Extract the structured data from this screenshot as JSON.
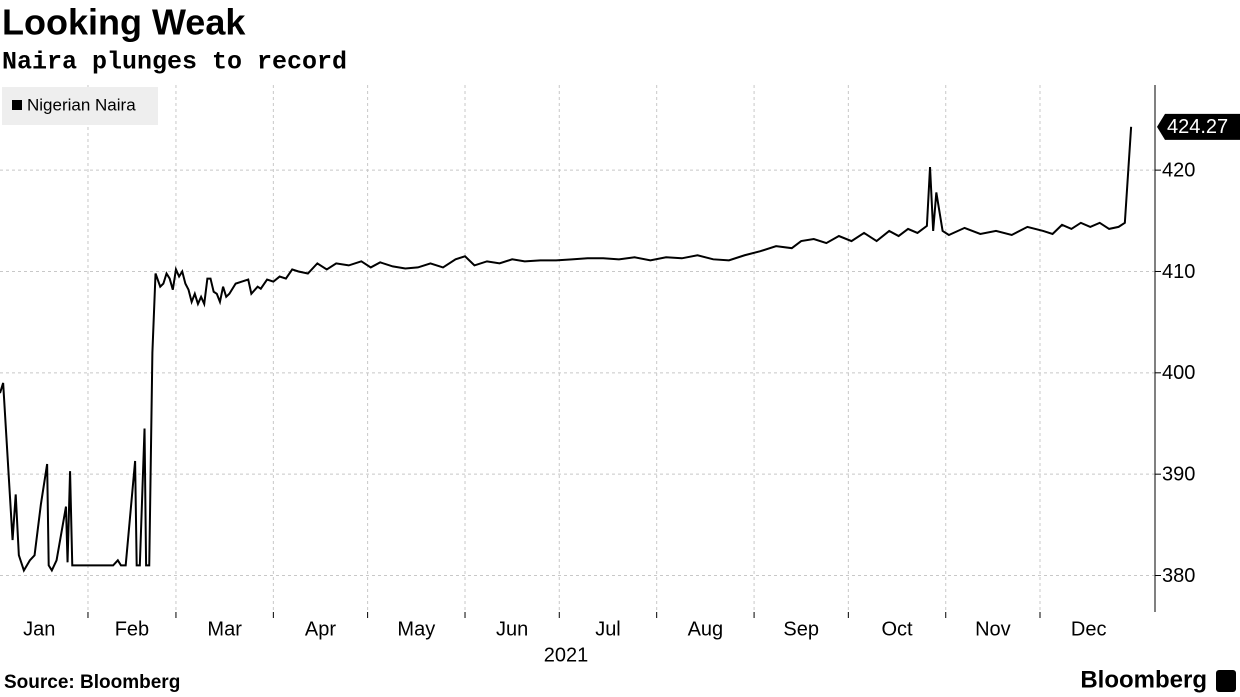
{
  "chart_data": {
    "type": "line",
    "title": "Looking Weak",
    "subtitle": "Naira plunges to record",
    "source": "Source: Bloomberg",
    "brand": "Bloomberg",
    "x_label": "2021",
    "series": [
      {
        "name": "Nigerian Naira",
        "color": "#000000",
        "x": [
          3,
          4,
          7,
          8,
          9,
          10.6,
          12.5,
          14,
          16,
          18,
          18.5,
          19.5,
          21,
          24,
          24.5,
          25.3,
          26,
          30,
          35,
          39,
          40.5,
          41.5,
          43,
          46,
          46.5,
          47.5,
          49,
          49.5,
          50.5,
          51.5,
          52.5,
          54,
          55,
          56,
          57,
          58,
          59,
          60,
          61,
          62,
          63,
          64,
          65,
          66,
          67,
          68,
          69,
          70,
          71,
          72,
          73,
          74,
          75,
          76,
          78,
          80,
          82,
          83,
          85,
          86,
          88,
          90,
          92,
          94,
          96,
          98,
          101,
          104,
          107,
          110,
          114,
          118,
          121,
          124,
          128,
          132,
          136,
          140,
          144,
          148,
          151,
          154,
          158,
          162,
          166,
          170,
          175,
          180,
          185,
          190,
          195,
          200,
          205,
          210,
          215,
          220,
          225,
          230,
          235,
          240,
          245,
          250,
          255,
          258,
          262,
          266,
          270,
          274,
          278,
          282,
          286,
          289,
          292,
          295,
          298,
          299,
          300,
          301,
          303,
          305,
          310,
          315,
          320,
          325,
          330,
          335,
          338,
          341,
          344,
          347,
          350,
          353,
          356,
          359,
          361,
          363
        ],
        "values": [
          398,
          399,
          383.5,
          388,
          382,
          380.5,
          381.5,
          382,
          387,
          391,
          381,
          380.5,
          381.5,
          386.8,
          381.3,
          390.3,
          381,
          381,
          381,
          381,
          381.5,
          381,
          381,
          391.3,
          381,
          381,
          394.5,
          381,
          381,
          402,
          409.8,
          408.5,
          408.8,
          409.8,
          409.3,
          408.2,
          410.2,
          409.5,
          410,
          408.8,
          408.2,
          407,
          407.8,
          406.8,
          407.5,
          406.8,
          409.3,
          409.3,
          408,
          407.8,
          407,
          408.5,
          407.5,
          407.8,
          408.8,
          409,
          409.2,
          407.8,
          408.5,
          408.3,
          409.2,
          409,
          409.5,
          409.3,
          410.2,
          410,
          409.8,
          410.8,
          410.2,
          410.8,
          410.6,
          411,
          410.4,
          410.9,
          410.5,
          410.3,
          410.4,
          410.8,
          410.4,
          411.2,
          411.5,
          410.6,
          411,
          410.8,
          411.2,
          411,
          411.1,
          411.1,
          411.2,
          411.3,
          411.3,
          411.2,
          411.4,
          411.1,
          411.4,
          411.3,
          411.6,
          411.2,
          411.1,
          411.6,
          412,
          412.5,
          412.3,
          413,
          413.2,
          412.8,
          413.5,
          413,
          413.8,
          413,
          414,
          413.5,
          414.2,
          413.8,
          414.5,
          420.3,
          414,
          417.8,
          414,
          413.6,
          414.3,
          413.7,
          414,
          413.6,
          414.4,
          414,
          413.7,
          414.6,
          414.2,
          414.8,
          414.4,
          414.8,
          414.2,
          414.4,
          414.8,
          424.27
        ]
      }
    ],
    "xlim": [
      3,
      370.6
    ],
    "xticks": [
      {
        "value": 0,
        "label": "Jan"
      },
      {
        "value": 31,
        "label": "Feb"
      },
      {
        "value": 59,
        "label": "Mar"
      },
      {
        "value": 90,
        "label": "Apr"
      },
      {
        "value": 120,
        "label": "May"
      },
      {
        "value": 151,
        "label": "Jun"
      },
      {
        "value": 181,
        "label": "Jul"
      },
      {
        "value": 212,
        "label": "Aug"
      },
      {
        "value": 243,
        "label": "Sep"
      },
      {
        "value": 273,
        "label": "Oct"
      },
      {
        "value": 304,
        "label": "Nov"
      },
      {
        "value": 334,
        "label": "Dec"
      }
    ],
    "ylim": [
      376.4,
      428.4
    ],
    "yticks": [
      380,
      390,
      400,
      410,
      420
    ],
    "grid": true
  }
}
